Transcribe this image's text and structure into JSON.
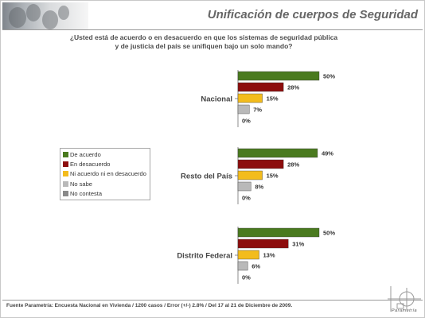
{
  "header": {
    "title": "Unificación de cuerpos de Seguridad"
  },
  "question": {
    "line1": "¿Usted está de acuerdo o en desacuerdo en que los sistemas de seguridad pública",
    "line2": "y de justicia del país se unifiquen bajo un solo mando?"
  },
  "footer": {
    "source": "Fuente Parametría: Encuesta Nacional en Vivienda / 1200 casos / Error (+/-) 2.8% / Del 17 al 21 de Diciembre de 2009.",
    "brand": "Parametría"
  },
  "colors": {
    "de_acuerdo": "#4a7a1f",
    "en_desacuerdo": "#8c0d0d",
    "ni_acuerdo": "#f3bc1d",
    "no_sabe": "#b9b9b9",
    "no_contesta": "#8a8a8a"
  },
  "chart_data": {
    "type": "bar",
    "orientation": "horizontal",
    "categories": [
      "Nacional",
      "Resto del País",
      "Distrito Federal"
    ],
    "series": [
      {
        "name": "De acuerdo",
        "values": [
          50,
          49,
          50
        ],
        "labels": [
          "50%",
          "49%",
          "50%"
        ]
      },
      {
        "name": "En desacuerdo",
        "values": [
          28,
          28,
          31
        ],
        "labels": [
          "28%",
          "28%",
          "31%"
        ]
      },
      {
        "name": "Ni acuerdo ni en desacuerdo",
        "values": [
          15,
          15,
          13
        ],
        "labels": [
          "15%",
          "15%",
          "13%"
        ]
      },
      {
        "name": "No sabe",
        "values": [
          7,
          8,
          6
        ],
        "labels": [
          "7%",
          "8%",
          "6%"
        ]
      },
      {
        "name": "No contesta",
        "values": [
          0,
          0,
          0
        ],
        "labels": [
          "0%",
          "0%",
          "0%"
        ]
      }
    ],
    "legend_position": "left",
    "grid": false
  }
}
